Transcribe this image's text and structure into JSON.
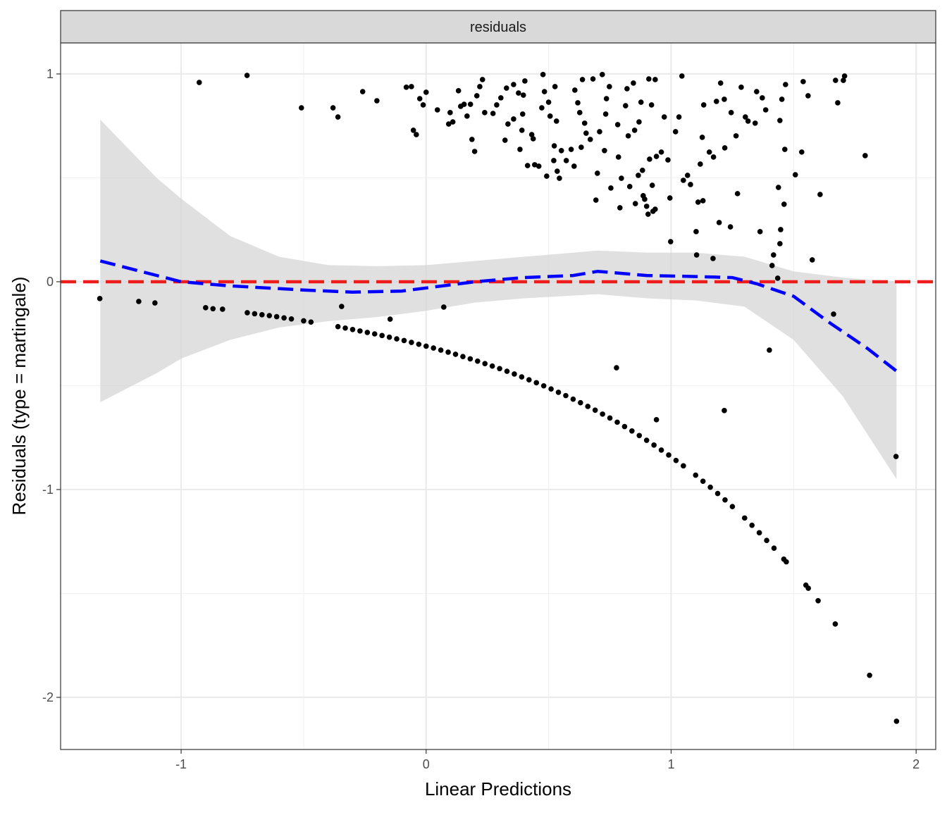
{
  "chart_data": {
    "type": "scatter",
    "facet_label": "residuals",
    "xlabel": "Linear Predictions",
    "ylabel": "Residuals (type = martingale)",
    "xlim": [
      -1.492,
      2.08
    ],
    "ylim": [
      -2.251,
      1.149
    ],
    "x_ticks": [
      -1,
      0,
      1,
      2
    ],
    "x_tick_labels": [
      "-1",
      "0",
      "1",
      "2"
    ],
    "y_ticks": [
      -2,
      -1,
      0,
      1
    ],
    "y_tick_labels": [
      "-2",
      "-1",
      "0",
      "1"
    ],
    "x_minor": [
      -0.5,
      0.5,
      1.5
    ],
    "y_minor": [
      -1.5,
      -0.5,
      0.5
    ],
    "grid": true,
    "colors": {
      "points": "#000000",
      "reference_line": "#ee1c1c",
      "smooth_line": "#0000ff",
      "ci_band": "#d3d3d3",
      "strip": "#d9d9d9"
    },
    "reference_line_y": 0,
    "points": [
      [
        -0.926,
        0.959
      ],
      [
        -0.731,
        0.993
      ],
      [
        -0.509,
        0.837
      ],
      [
        -0.38,
        0.837
      ],
      [
        -0.36,
        0.793
      ],
      [
        -0.259,
        0.915
      ],
      [
        -0.201,
        0.871
      ],
      [
        -0.081,
        0.936
      ],
      [
        -0.06,
        0.939
      ],
      [
        -0.052,
        0.729
      ],
      [
        -0.04,
        0.708
      ],
      [
        -0.026,
        0.881
      ],
      [
        -0.012,
        0.851
      ],
      [
        0.0,
        0.912
      ],
      [
        0.046,
        0.827
      ],
      [
        0.092,
        0.759
      ],
      [
        0.098,
        0.814
      ],
      [
        0.109,
        0.769
      ],
      [
        0.132,
        0.919
      ],
      [
        0.141,
        0.844
      ],
      [
        0.155,
        0.854
      ],
      [
        0.167,
        0.797
      ],
      [
        0.181,
        0.854
      ],
      [
        0.187,
        0.685
      ],
      [
        0.198,
        0.627
      ],
      [
        0.207,
        0.895
      ],
      [
        0.219,
        0.939
      ],
      [
        0.23,
        0.973
      ],
      [
        0.239,
        0.814
      ],
      [
        0.273,
        0.81
      ],
      [
        0.288,
        0.851
      ],
      [
        0.305,
        0.885
      ],
      [
        0.322,
        0.681
      ],
      [
        0.328,
        0.932
      ],
      [
        0.334,
        0.759
      ],
      [
        0.357,
        0.949
      ],
      [
        0.357,
        0.783
      ],
      [
        0.377,
        0.908
      ],
      [
        0.383,
        0.637
      ],
      [
        0.391,
        0.729
      ],
      [
        0.394,
        0.807
      ],
      [
        0.397,
        0.898
      ],
      [
        0.403,
        0.966
      ],
      [
        0.414,
        0.559
      ],
      [
        0.431,
        0.708
      ],
      [
        0.437,
        0.688
      ],
      [
        0.443,
        0.563
      ],
      [
        0.46,
        0.556
      ],
      [
        0.472,
        0.837
      ],
      [
        0.477,
        0.997
      ],
      [
        0.483,
        0.915
      ],
      [
        0.492,
        0.508
      ],
      [
        0.5,
        0.864
      ],
      [
        0.506,
        0.797
      ],
      [
        0.521,
        0.583
      ],
      [
        0.523,
        0.654
      ],
      [
        0.526,
        0.939
      ],
      [
        0.532,
        0.773
      ],
      [
        0.535,
        0.532
      ],
      [
        0.544,
        0.498
      ],
      [
        0.552,
        0.631
      ],
      [
        0.572,
        0.583
      ],
      [
        0.592,
        0.637
      ],
      [
        0.604,
        0.556
      ],
      [
        0.607,
        0.922
      ],
      [
        0.619,
        0.861
      ],
      [
        0.627,
        0.814
      ],
      [
        0.633,
        0.647
      ],
      [
        0.638,
        0.973
      ],
      [
        0.647,
        0.763
      ],
      [
        0.653,
        0.715
      ],
      [
        0.67,
        0.685
      ],
      [
        0.681,
        0.976
      ],
      [
        0.693,
        0.393
      ],
      [
        0.699,
        0.522
      ],
      [
        0.708,
        0.722
      ],
      [
        0.719,
        0.997
      ],
      [
        0.728,
        0.631
      ],
      [
        0.733,
        0.807
      ],
      [
        0.736,
        0.881
      ],
      [
        0.748,
        0.939
      ],
      [
        0.754,
        0.451
      ],
      [
        0.782,
        0.756
      ],
      [
        0.785,
        0.6
      ],
      [
        0.791,
        0.356
      ],
      [
        0.797,
        0.498
      ],
      [
        0.814,
        0.847
      ],
      [
        0.82,
        0.929
      ],
      [
        0.825,
        0.702
      ],
      [
        0.831,
        0.458
      ],
      [
        0.846,
        0.956
      ],
      [
        0.851,
        0.729
      ],
      [
        0.854,
        0.376
      ],
      [
        0.866,
        0.512
      ],
      [
        0.869,
        0.769
      ],
      [
        0.877,
        0.864
      ],
      [
        0.883,
        0.536
      ],
      [
        0.886,
        0.414
      ],
      [
        0.892,
        0.397
      ],
      [
        0.9,
        0.363
      ],
      [
        0.906,
        0.325
      ],
      [
        0.909,
        0.976
      ],
      [
        0.912,
        0.59
      ],
      [
        0.92,
        0.851
      ],
      [
        0.923,
        0.464
      ],
      [
        0.926,
        0.339
      ],
      [
        0.935,
        0.349
      ],
      [
        0.935,
        0.973
      ],
      [
        0.94,
        0.603
      ],
      [
        0.96,
        0.624
      ],
      [
        0.972,
        0.793
      ],
      [
        0.987,
        0.586
      ],
      [
        0.995,
        0.403
      ],
      [
        0.998,
        0.193
      ],
      [
        1.018,
        0.722
      ],
      [
        1.032,
        0.793
      ],
      [
        1.044,
        0.99
      ],
      [
        1.05,
        0.488
      ],
      [
        1.067,
        0.512
      ],
      [
        1.079,
        0.468
      ],
      [
        1.102,
        0.241
      ],
      [
        1.104,
        0.129
      ],
      [
        1.11,
        0.383
      ],
      [
        1.119,
        0.566
      ],
      [
        1.127,
        0.695
      ],
      [
        1.13,
        0.39
      ],
      [
        1.133,
        0.851
      ],
      [
        1.156,
        0.624
      ],
      [
        1.171,
        0.112
      ],
      [
        1.173,
        0.6
      ],
      [
        1.185,
        0.868
      ],
      [
        1.196,
        0.285
      ],
      [
        1.202,
        0.956
      ],
      [
        1.217,
        0.878
      ],
      [
        1.219,
        0.644
      ],
      [
        1.242,
        0.264
      ],
      [
        1.245,
        0.814
      ],
      [
        1.265,
        0.702
      ],
      [
        1.271,
        0.424
      ],
      [
        1.286,
        0.936
      ],
      [
        1.303,
        0.793
      ],
      [
        1.314,
        0.773
      ],
      [
        1.343,
        0.763
      ],
      [
        1.349,
        0.915
      ],
      [
        1.363,
        0.241
      ],
      [
        1.372,
        0.885
      ],
      [
        1.386,
        0.827
      ],
      [
        1.412,
        0.078
      ],
      [
        1.418,
        0.129
      ],
      [
        1.435,
        0.017
      ],
      [
        1.438,
        0.454
      ],
      [
        1.444,
        0.776
      ],
      [
        1.444,
        0.183
      ],
      [
        1.447,
        0.251
      ],
      [
        1.452,
        0.878
      ],
      [
        1.461,
        0.373
      ],
      [
        1.464,
        0.637
      ],
      [
        1.467,
        0.949
      ],
      [
        1.507,
        0.515
      ],
      [
        1.533,
        0.624
      ],
      [
        1.539,
        0.963
      ],
      [
        1.559,
        0.895
      ],
      [
        1.576,
        0.105
      ],
      [
        1.608,
        0.42
      ],
      [
        1.663,
        -0.156
      ],
      [
        1.671,
        0.969
      ],
      [
        1.68,
        0.861
      ],
      [
        1.703,
        0.969
      ],
      [
        1.708,
        0.99
      ],
      [
        1.792,
        0.607
      ],
      [
        1.401,
        -0.329
      ],
      [
        0.777,
        -0.414
      ],
      [
        0.94,
        -0.664
      ],
      [
        1.217,
        -0.62
      ],
      [
        1.918,
        -0.841
      ],
      [
        -0.345,
        -0.119
      ],
      [
        0.072,
        -0.122
      ],
      [
        -0.147,
        -0.18
      ],
      [
        -1.332,
        -0.081
      ],
      [
        -1.173,
        -0.095
      ],
      [
        -1.107,
        -0.102
      ],
      [
        -0.9,
        -0.125
      ],
      [
        -0.831,
        -0.132
      ],
      [
        -0.87,
        -0.13
      ],
      [
        -0.73,
        -0.149
      ],
      [
        -0.7,
        -0.154
      ],
      [
        -0.67,
        -0.159
      ],
      [
        -0.64,
        -0.163
      ],
      [
        -0.61,
        -0.168
      ],
      [
        -0.58,
        -0.174
      ],
      [
        -0.55,
        -0.179
      ],
      [
        -0.5,
        -0.188
      ],
      [
        -0.47,
        -0.194
      ],
      [
        -0.36,
        -0.216
      ],
      [
        -0.33,
        -0.223
      ],
      [
        -0.3,
        -0.23
      ],
      [
        -0.27,
        -0.237
      ],
      [
        -0.24,
        -0.244
      ],
      [
        -0.21,
        -0.251
      ],
      [
        -0.18,
        -0.259
      ],
      [
        -0.15,
        -0.267
      ],
      [
        -0.12,
        -0.275
      ],
      [
        -0.09,
        -0.283
      ],
      [
        -0.06,
        -0.292
      ],
      [
        -0.03,
        -0.301
      ],
      [
        0.0,
        -0.31
      ],
      [
        0.03,
        -0.319
      ],
      [
        0.06,
        -0.329
      ],
      [
        0.09,
        -0.339
      ],
      [
        0.12,
        -0.349
      ],
      [
        0.15,
        -0.36
      ],
      [
        0.18,
        -0.371
      ],
      [
        0.21,
        -0.382
      ],
      [
        0.24,
        -0.394
      ],
      [
        0.27,
        -0.406
      ],
      [
        0.3,
        -0.418
      ],
      [
        0.33,
        -0.431
      ],
      [
        0.36,
        -0.444
      ],
      [
        0.39,
        -0.458
      ],
      [
        0.42,
        -0.472
      ],
      [
        0.45,
        -0.486
      ],
      [
        0.48,
        -0.501
      ],
      [
        0.51,
        -0.516
      ],
      [
        0.54,
        -0.532
      ],
      [
        0.57,
        -0.548
      ],
      [
        0.6,
        -0.565
      ],
      [
        0.63,
        -0.582
      ],
      [
        0.66,
        -0.6
      ],
      [
        0.69,
        -0.618
      ],
      [
        0.72,
        -0.637
      ],
      [
        0.75,
        -0.656
      ],
      [
        0.78,
        -0.676
      ],
      [
        0.81,
        -0.697
      ],
      [
        0.84,
        -0.718
      ],
      [
        0.87,
        -0.74
      ],
      [
        0.9,
        -0.763
      ],
      [
        0.93,
        -0.786
      ],
      [
        0.96,
        -0.81
      ],
      [
        0.99,
        -0.834
      ],
      [
        1.02,
        -0.86
      ],
      [
        1.05,
        -0.886
      ],
      [
        1.1,
        -0.931
      ],
      [
        1.13,
        -0.96
      ],
      [
        1.16,
        -0.989
      ],
      [
        1.19,
        -1.019
      ],
      [
        1.22,
        -1.05
      ],
      [
        1.25,
        -1.082
      ],
      [
        1.3,
        -1.137
      ],
      [
        1.33,
        -1.172
      ],
      [
        1.36,
        -1.208
      ],
      [
        1.39,
        -1.245
      ],
      [
        1.42,
        -1.282
      ],
      [
        1.46,
        -1.335
      ],
      [
        1.47,
        -1.348
      ],
      [
        1.55,
        -1.46
      ],
      [
        1.56,
        -1.475
      ],
      [
        1.6,
        -1.535
      ],
      [
        1.67,
        -1.647
      ],
      [
        1.81,
        -1.894
      ],
      [
        1.92,
        -2.115
      ]
    ],
    "smooth": {
      "x": [
        -1.33,
        -1.0,
        -0.8,
        -0.5,
        -0.3,
        -0.1,
        0.0,
        0.2,
        0.4,
        0.6,
        0.7,
        0.9,
        1.1,
        1.25,
        1.35,
        1.5,
        1.65,
        1.8,
        1.92
      ],
      "y": [
        0.1,
        0.0,
        -0.02,
        -0.04,
        -0.05,
        -0.045,
        -0.03,
        0.0,
        0.02,
        0.03,
        0.05,
        0.03,
        0.025,
        0.02,
        -0.01,
        -0.07,
        -0.2,
        -0.32,
        -0.43
      ],
      "ci_x": [
        -1.33,
        -1.1,
        -1.0,
        -0.8,
        -0.6,
        -0.4,
        -0.2,
        0.0,
        0.2,
        0.4,
        0.7,
        0.9,
        1.1,
        1.3,
        1.5,
        1.7,
        1.92
      ],
      "ci_upper": [
        0.78,
        0.5,
        0.4,
        0.22,
        0.12,
        0.08,
        0.075,
        0.08,
        0.1,
        0.12,
        0.15,
        0.14,
        0.14,
        0.12,
        0.05,
        0.02,
        0.0
      ],
      "ci_lower": [
        -0.58,
        -0.44,
        -0.37,
        -0.28,
        -0.22,
        -0.19,
        -0.17,
        -0.14,
        -0.1,
        -0.08,
        -0.06,
        -0.08,
        -0.09,
        -0.12,
        -0.28,
        -0.55,
        -0.95
      ]
    }
  }
}
